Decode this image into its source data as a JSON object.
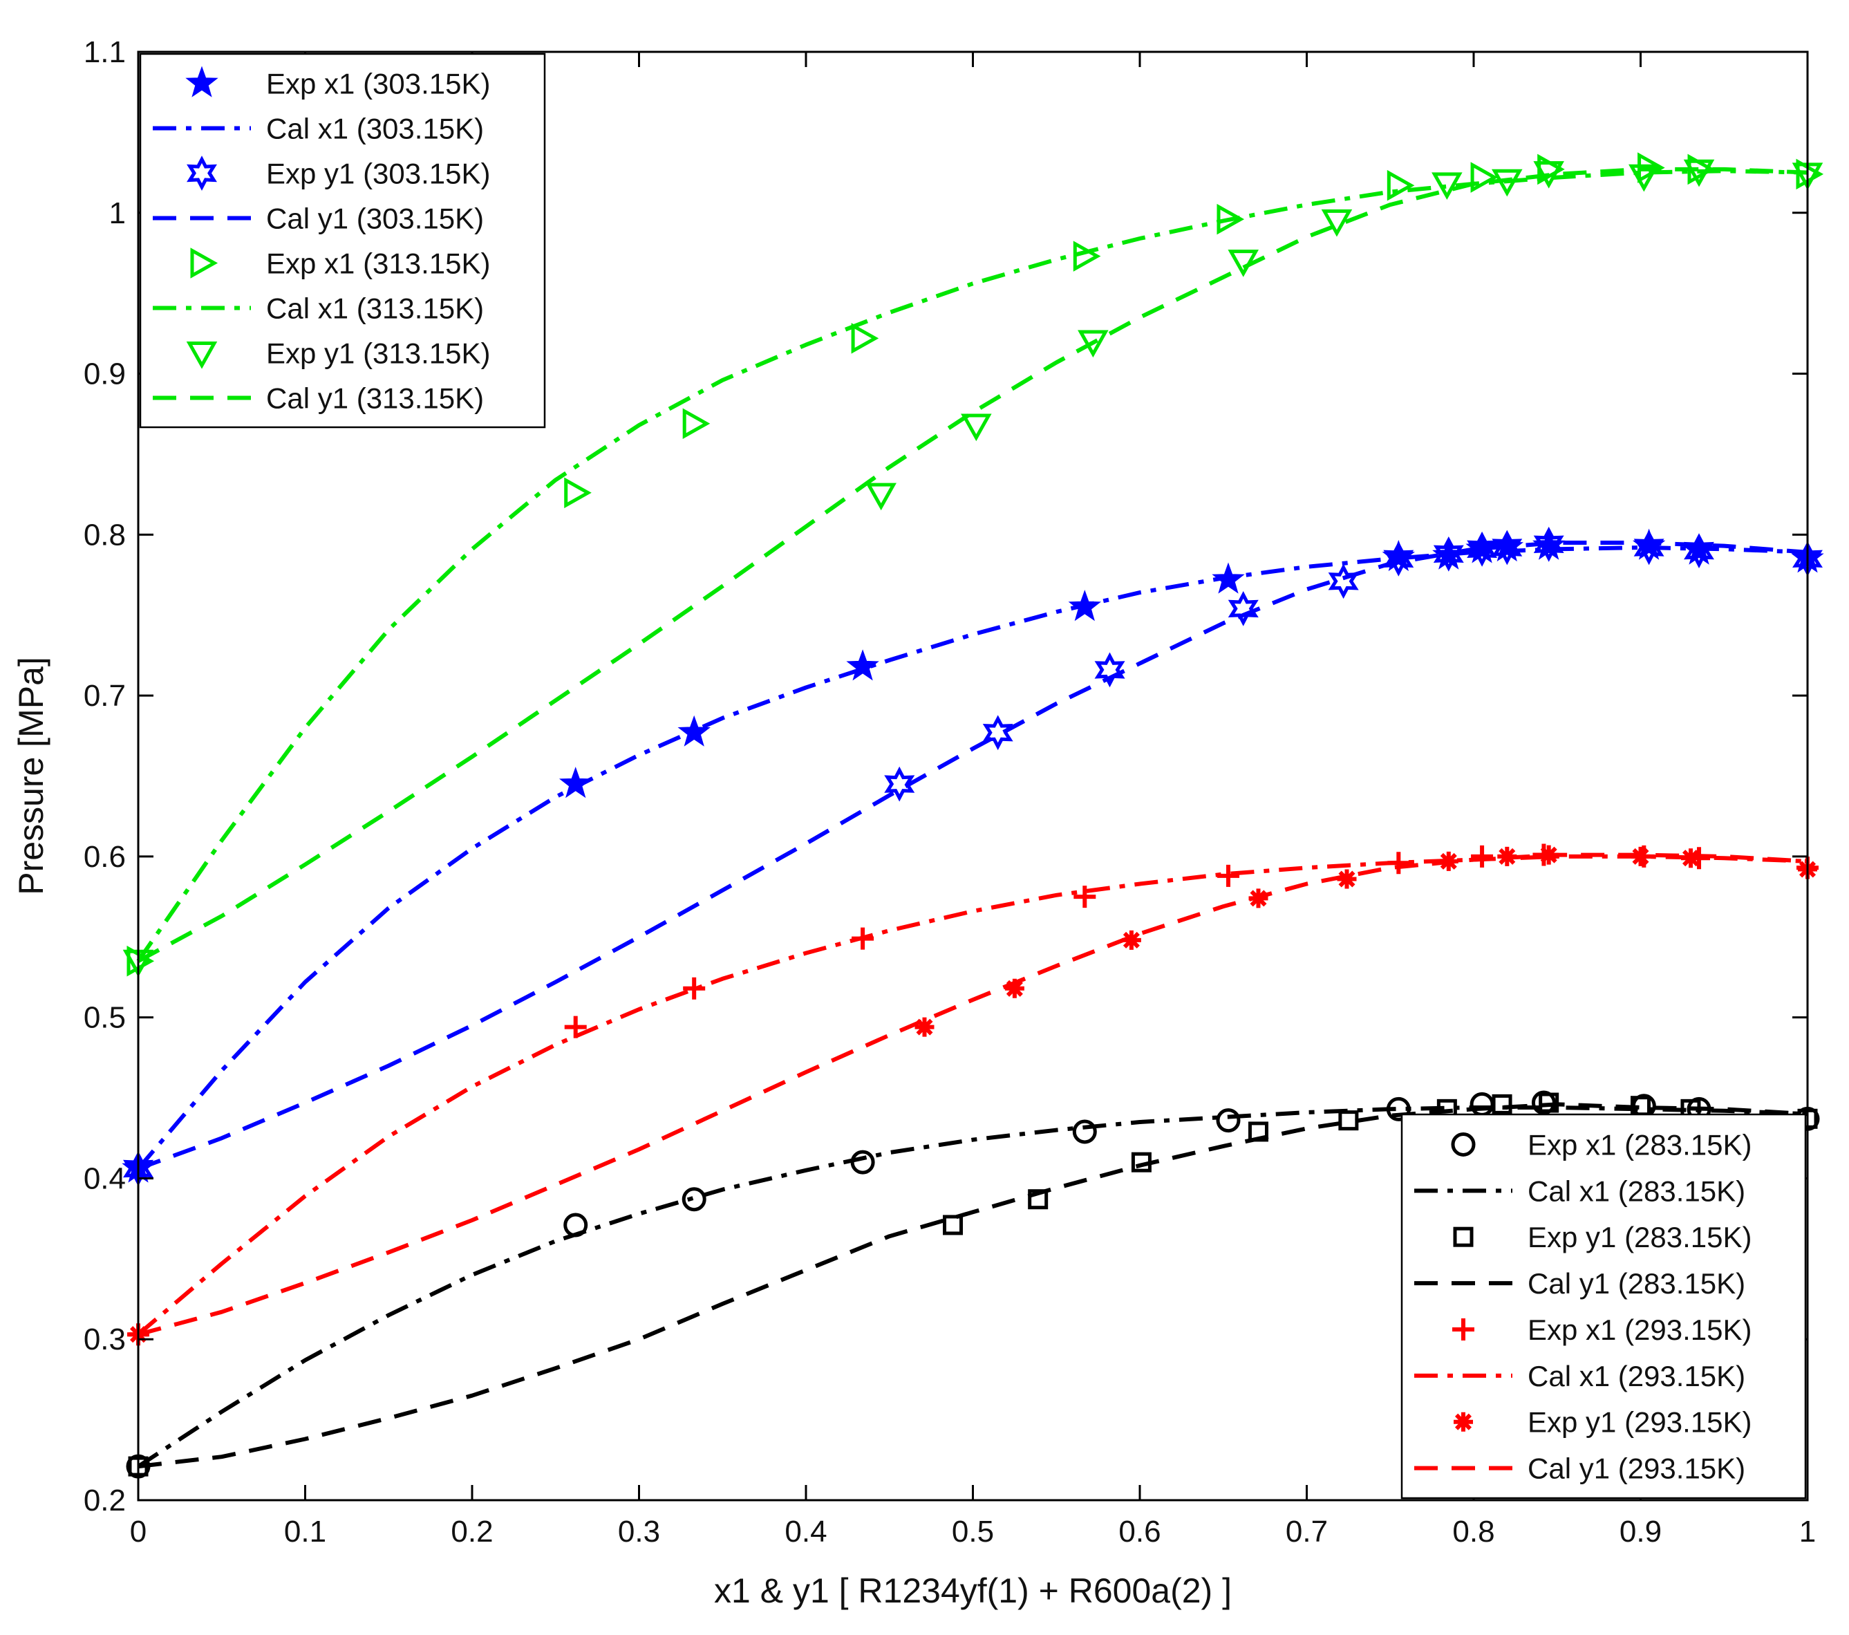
{
  "chart_data": {
    "type": "line",
    "title": "",
    "xlabel": "x1 & y1 [ R1234yf(1) + R600a(2) ]",
    "ylabel": "Pressure [MPa]",
    "xlim": [
      0,
      1
    ],
    "ylim": [
      0.2,
      1.1
    ],
    "xticks": [
      0,
      0.1,
      0.2,
      0.3,
      0.4,
      0.5,
      0.6,
      0.7,
      0.8,
      0.9,
      1
    ],
    "xtick_labels": [
      "0",
      "0.1",
      "0.2",
      "0.3",
      "0.4",
      "0.5",
      "0.6",
      "0.7",
      "0.8",
      "0.9",
      "1"
    ],
    "yticks": [
      0.2,
      0.3,
      0.4,
      0.5,
      0.6,
      0.7,
      0.8,
      0.9,
      1.0,
      1.1
    ],
    "ytick_labels": [
      "0.2",
      "0.3",
      "0.4",
      "0.5",
      "0.6",
      "0.7",
      "0.8",
      "0.9",
      "1",
      "1.1"
    ],
    "grid": false,
    "legends": [
      {
        "placement": "top-left",
        "entries": [
          "Exp x1 (303.15K)",
          "Cal x1 (303.15K)",
          "Exp y1 (303.15K)",
          "Cal y1 (303.15K)",
          "Exp x1 (313.15K)",
          "Cal x1 (313.15K)",
          "Exp y1 (313.15K)",
          "Cal y1 (313.15K)"
        ]
      },
      {
        "placement": "bottom-right",
        "entries": [
          "Exp x1 (283.15K)",
          "Cal x1 (283.15K)",
          "Exp y1 (283.15K)",
          "Cal y1 (283.15K)",
          "Exp x1 (293.15K)",
          "Cal x1 (293.15K)",
          "Exp y1 (293.15K)",
          "Cal y1 (293.15K)"
        ]
      }
    ],
    "series": [
      {
        "name": "Exp x1 (283.15K)",
        "kind": "marker",
        "marker": "circle",
        "color": "#000000",
        "x": [
          0,
          0.262,
          0.333,
          0.434,
          0.567,
          0.653,
          0.755,
          0.805,
          0.842,
          0.902,
          0.935,
          1.0
        ],
        "y": [
          0.221,
          0.371,
          0.387,
          0.41,
          0.429,
          0.436,
          0.443,
          0.446,
          0.447,
          0.445,
          0.443,
          0.437
        ]
      },
      {
        "name": "Cal x1 (283.15K)",
        "kind": "line",
        "dash": "dashdot",
        "color": "#000000",
        "x": [
          0,
          0.05,
          0.1,
          0.15,
          0.2,
          0.25,
          0.3,
          0.35,
          0.4,
          0.45,
          0.5,
          0.55,
          0.6,
          0.65,
          0.7,
          0.75,
          0.8,
          0.85,
          0.9,
          0.95,
          1.0
        ],
        "y": [
          0.221,
          0.255,
          0.287,
          0.315,
          0.34,
          0.361,
          0.378,
          0.393,
          0.405,
          0.416,
          0.424,
          0.43,
          0.435,
          0.438,
          0.441,
          0.443,
          0.444,
          0.444,
          0.443,
          0.442,
          0.44
        ]
      },
      {
        "name": "Exp y1 (283.15K)",
        "kind": "marker",
        "marker": "square",
        "color": "#000000",
        "x": [
          0,
          0.488,
          0.539,
          0.601,
          0.671,
          0.725,
          0.784,
          0.817,
          0.845,
          0.9,
          0.93,
          1.0
        ],
        "y": [
          0.221,
          0.371,
          0.387,
          0.41,
          0.429,
          0.436,
          0.443,
          0.446,
          0.447,
          0.445,
          0.443,
          0.437
        ]
      },
      {
        "name": "Cal y1 (283.15K)",
        "kind": "line",
        "dash": "dash",
        "color": "#000000",
        "x": [
          0,
          0.05,
          0.1,
          0.15,
          0.2,
          0.25,
          0.3,
          0.35,
          0.4,
          0.45,
          0.5,
          0.55,
          0.6,
          0.65,
          0.7,
          0.75,
          0.8,
          0.85,
          0.9,
          0.95,
          1.0
        ],
        "y": [
          0.221,
          0.227,
          0.238,
          0.251,
          0.265,
          0.282,
          0.3,
          0.322,
          0.343,
          0.364,
          0.379,
          0.394,
          0.408,
          0.42,
          0.431,
          0.439,
          0.443,
          0.446,
          0.444,
          0.443,
          0.44
        ]
      },
      {
        "name": "Exp x1 (293.15K)",
        "kind": "marker",
        "marker": "plus",
        "color": "#ff0000",
        "x": [
          0,
          0.262,
          0.333,
          0.434,
          0.567,
          0.653,
          0.755,
          0.805,
          0.842,
          0.902,
          0.935,
          1.0
        ],
        "y": [
          0.303,
          0.494,
          0.518,
          0.549,
          0.575,
          0.588,
          0.596,
          0.6,
          0.601,
          0.6,
          0.599,
          0.593
        ]
      },
      {
        "name": "Cal x1 (293.15K)",
        "kind": "line",
        "dash": "dashdot",
        "color": "#ff0000",
        "x": [
          0,
          0.05,
          0.1,
          0.15,
          0.2,
          0.25,
          0.3,
          0.35,
          0.4,
          0.45,
          0.5,
          0.55,
          0.6,
          0.65,
          0.7,
          0.75,
          0.8,
          0.85,
          0.9,
          0.95,
          1.0
        ],
        "y": [
          0.303,
          0.347,
          0.389,
          0.426,
          0.457,
          0.483,
          0.505,
          0.524,
          0.54,
          0.554,
          0.566,
          0.576,
          0.583,
          0.589,
          0.593,
          0.596,
          0.598,
          0.6,
          0.6,
          0.599,
          0.597
        ]
      },
      {
        "name": "Exp y1 (293.15K)",
        "kind": "marker",
        "marker": "asterisk",
        "color": "#ff0000",
        "x": [
          0,
          0.471,
          0.525,
          0.595,
          0.671,
          0.724,
          0.785,
          0.82,
          0.845,
          0.9,
          0.93,
          1.0
        ],
        "y": [
          0.303,
          0.494,
          0.518,
          0.548,
          0.574,
          0.586,
          0.597,
          0.6,
          0.601,
          0.6,
          0.599,
          0.592
        ]
      },
      {
        "name": "Cal y1 (293.15K)",
        "kind": "line",
        "dash": "dash",
        "color": "#ff0000",
        "x": [
          0,
          0.05,
          0.1,
          0.15,
          0.2,
          0.25,
          0.3,
          0.35,
          0.4,
          0.45,
          0.5,
          0.55,
          0.6,
          0.65,
          0.7,
          0.75,
          0.8,
          0.85,
          0.9,
          0.95,
          1.0
        ],
        "y": [
          0.303,
          0.317,
          0.335,
          0.354,
          0.374,
          0.396,
          0.418,
          0.442,
          0.466,
          0.489,
          0.511,
          0.532,
          0.552,
          0.569,
          0.583,
          0.593,
          0.598,
          0.601,
          0.601,
          0.6,
          0.597
        ]
      },
      {
        "name": "Exp x1 (303.15K)",
        "kind": "marker",
        "marker": "pentagram",
        "color": "#0000ff",
        "x": [
          0,
          0.262,
          0.333,
          0.434,
          0.567,
          0.653,
          0.755,
          0.785,
          0.805,
          0.82,
          0.845,
          0.905,
          0.935,
          1.0
        ],
        "y": [
          0.406,
          0.645,
          0.677,
          0.718,
          0.755,
          0.772,
          0.786,
          0.787,
          0.791,
          0.792,
          0.793,
          0.793,
          0.79,
          0.785
        ]
      },
      {
        "name": "Cal x1 (303.15K)",
        "kind": "line",
        "dash": "dashdot",
        "color": "#0000ff",
        "x": [
          0,
          0.05,
          0.1,
          0.15,
          0.2,
          0.25,
          0.3,
          0.35,
          0.4,
          0.45,
          0.5,
          0.55,
          0.6,
          0.65,
          0.7,
          0.75,
          0.8,
          0.85,
          0.9,
          0.95,
          1.0
        ],
        "y": [
          0.406,
          0.467,
          0.522,
          0.568,
          0.605,
          0.637,
          0.663,
          0.686,
          0.705,
          0.722,
          0.738,
          0.752,
          0.764,
          0.773,
          0.78,
          0.785,
          0.789,
          0.791,
          0.792,
          0.791,
          0.789
        ]
      },
      {
        "name": "Exp y1 (303.15K)",
        "kind": "marker",
        "marker": "hexagram",
        "color": "#0000ff",
        "x": [
          0,
          0.456,
          0.515,
          0.582,
          0.662,
          0.722,
          0.755,
          0.785,
          0.805,
          0.82,
          0.845,
          0.905,
          0.935,
          1.0
        ],
        "y": [
          0.406,
          0.645,
          0.677,
          0.716,
          0.754,
          0.771,
          0.785,
          0.788,
          0.791,
          0.792,
          0.794,
          0.792,
          0.79,
          0.785
        ]
      },
      {
        "name": "Cal y1 (303.15K)",
        "kind": "line",
        "dash": "dash",
        "color": "#0000ff",
        "x": [
          0,
          0.05,
          0.1,
          0.15,
          0.2,
          0.25,
          0.3,
          0.35,
          0.4,
          0.45,
          0.5,
          0.55,
          0.6,
          0.65,
          0.7,
          0.75,
          0.8,
          0.85,
          0.9,
          0.95,
          1.0
        ],
        "y": [
          0.406,
          0.425,
          0.447,
          0.47,
          0.495,
          0.522,
          0.55,
          0.579,
          0.608,
          0.638,
          0.667,
          0.695,
          0.72,
          0.745,
          0.766,
          0.782,
          0.791,
          0.795,
          0.795,
          0.793,
          0.789
        ]
      },
      {
        "name": "Exp x1 (313.15K)",
        "kind": "marker",
        "marker": "triangle-right",
        "color": "#00e600",
        "x": [
          0,
          0.262,
          0.333,
          0.434,
          0.567,
          0.653,
          0.755,
          0.805,
          0.845,
          0.905,
          0.935,
          1.0
        ],
        "y": [
          0.535,
          0.826,
          0.869,
          0.922,
          0.973,
          0.996,
          1.017,
          1.022,
          1.027,
          1.028,
          1.027,
          1.024
        ]
      },
      {
        "name": "Cal x1 (313.15K)",
        "kind": "line",
        "dash": "dashdot",
        "color": "#00e600",
        "x": [
          0,
          0.05,
          0.1,
          0.15,
          0.2,
          0.25,
          0.3,
          0.35,
          0.4,
          0.45,
          0.5,
          0.55,
          0.6,
          0.65,
          0.7,
          0.75,
          0.8,
          0.85,
          0.9,
          0.95,
          1.0
        ],
        "y": [
          0.535,
          0.61,
          0.68,
          0.741,
          0.791,
          0.834,
          0.868,
          0.896,
          0.918,
          0.938,
          0.956,
          0.971,
          0.984,
          0.995,
          1.005,
          1.013,
          1.018,
          1.022,
          1.025,
          1.026,
          1.025
        ]
      },
      {
        "name": "Exp y1 (313.15K)",
        "kind": "marker",
        "marker": "triangle-down",
        "color": "#00e600",
        "x": [
          0,
          0.445,
          0.502,
          0.572,
          0.662,
          0.718,
          0.784,
          0.82,
          0.845,
          0.902,
          0.935,
          1.0
        ],
        "y": [
          0.535,
          0.825,
          0.868,
          0.92,
          0.97,
          0.995,
          1.018,
          1.02,
          1.025,
          1.023,
          1.026,
          1.024
        ]
      },
      {
        "name": "Cal y1 (313.15K)",
        "kind": "line",
        "dash": "dash",
        "color": "#00e600",
        "x": [
          0,
          0.05,
          0.1,
          0.15,
          0.2,
          0.25,
          0.3,
          0.35,
          0.4,
          0.45,
          0.5,
          0.55,
          0.6,
          0.65,
          0.7,
          0.75,
          0.8,
          0.85,
          0.9,
          0.95,
          1.0
        ],
        "y": [
          0.535,
          0.563,
          0.595,
          0.628,
          0.662,
          0.697,
          0.732,
          0.768,
          0.805,
          0.842,
          0.876,
          0.907,
          0.935,
          0.96,
          0.985,
          1.005,
          1.018,
          1.024,
          1.027,
          1.027,
          1.025
        ]
      }
    ]
  }
}
